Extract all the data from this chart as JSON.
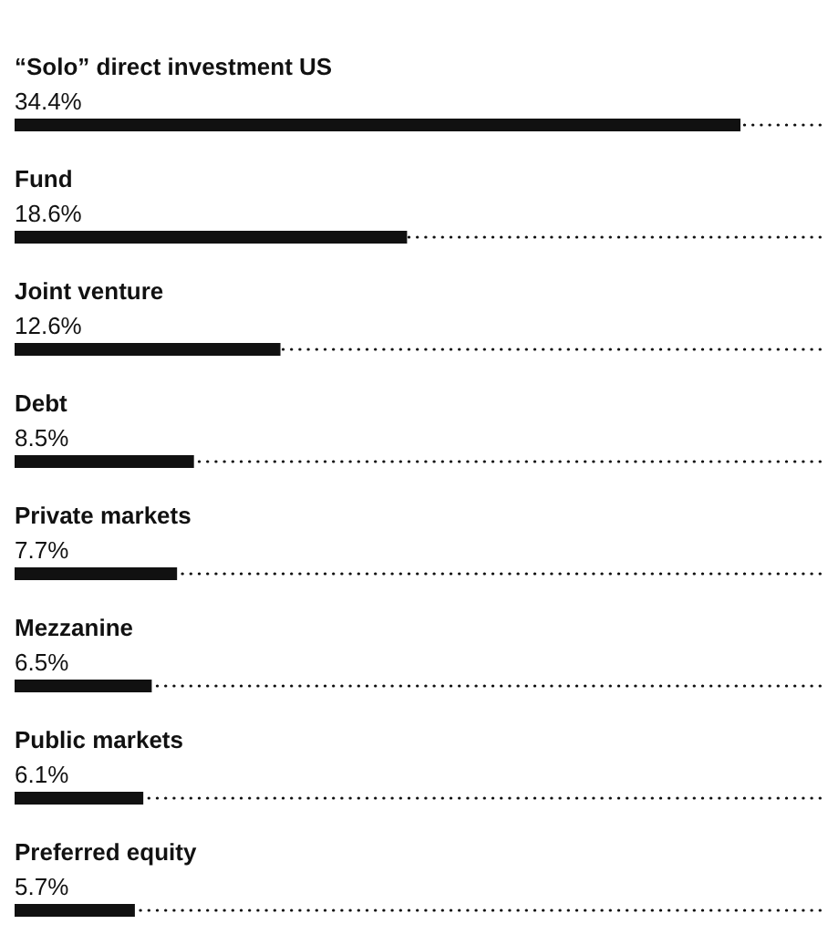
{
  "chart_data": {
    "type": "bar",
    "orientation": "horizontal",
    "categories": [
      "“Solo” direct investment US",
      "Fund",
      "Joint venture",
      "Debt",
      "Private markets",
      "Mezzanine",
      "Public markets",
      "Preferred equity"
    ],
    "values": [
      34.4,
      18.6,
      12.6,
      8.5,
      7.7,
      6.5,
      6.1,
      5.7
    ],
    "value_labels": [
      "34.4%",
      "18.6%",
      "12.6%",
      "8.5%",
      "7.7%",
      "6.5%",
      "6.1%",
      "5.7%"
    ],
    "color": "#111111"
  }
}
